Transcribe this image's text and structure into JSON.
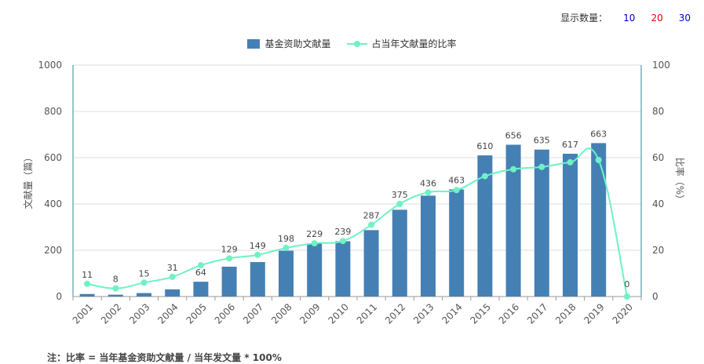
{
  "controls": {
    "display_count_label": "显示数量：",
    "options": [
      {
        "label": "10",
        "color": "#0000cc"
      },
      {
        "label": "20",
        "color": "#e00000"
      },
      {
        "label": "30",
        "color": "#0000cc"
      }
    ]
  },
  "note": "注：比率 = 当年基金资助文献量 / 当年发文量 * 100%",
  "chart_data": {
    "type": "bar",
    "title": "",
    "categories": [
      "2001",
      "2002",
      "2003",
      "2004",
      "2005",
      "2006",
      "2007",
      "2008",
      "2009",
      "2010",
      "2011",
      "2012",
      "2013",
      "2014",
      "2015",
      "2016",
      "2017",
      "2018",
      "2019",
      "2020"
    ],
    "series": [
      {
        "name": "基金资助文献量",
        "type": "bar",
        "axis": "left",
        "color": "#4580b5",
        "values": [
          11,
          8,
          15,
          31,
          64,
          129,
          149,
          198,
          229,
          239,
          287,
          375,
          436,
          463,
          610,
          656,
          635,
          617,
          663,
          0
        ]
      },
      {
        "name": "占当年文献量的比率",
        "type": "line",
        "axis": "right",
        "color": "#6ef2c4",
        "values": [
          5.5,
          3.5,
          6,
          8.5,
          13.5,
          16.5,
          18,
          21,
          23,
          24,
          31,
          40,
          45,
          46,
          52,
          55,
          56,
          58,
          59,
          0
        ]
      }
    ],
    "ylabel": "文献量（篇）",
    "ylim": [
      0,
      1000
    ],
    "yticks": [
      0,
      200,
      400,
      600,
      800,
      1000
    ],
    "y2label": "比率（%）",
    "y2lim": [
      0,
      100
    ],
    "y2ticks": [
      0,
      20,
      40,
      60,
      80,
      100
    ],
    "grid": true,
    "legend_position": "top-center",
    "data_labels": true
  }
}
